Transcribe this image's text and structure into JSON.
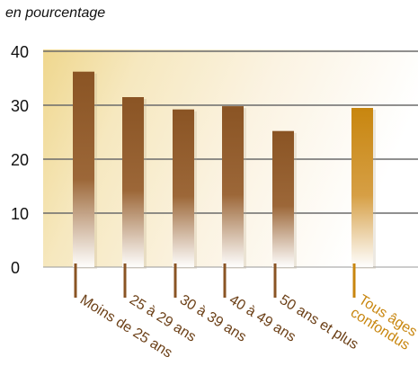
{
  "unit_label": "en pourcentage",
  "colors": {
    "bar": "#8a5424",
    "bar_highlight": "#c8860f",
    "category_text": "#6b3f16",
    "category_text_highlight": "#c8860f",
    "grid": "#6b6b6b",
    "axis": "#9a9a9a",
    "background_warm": "#f1de9e"
  },
  "chart_data": {
    "type": "bar",
    "ylim": [
      0,
      40
    ],
    "yticks": [
      0,
      10,
      20,
      30,
      40
    ],
    "grid": true,
    "categories": [
      "Moins de 25 ans",
      "25 à 29 ans",
      "30 à 39 ans",
      "40 à 49 ans",
      "50 ans et plus",
      "Tous âges confondus"
    ],
    "category_lines": [
      [
        "Moins de 25 ans"
      ],
      [
        "25 à 29 ans"
      ],
      [
        "30 à 39 ans"
      ],
      [
        "40 à 49 ans"
      ],
      [
        "50 ans et plus"
      ],
      [
        "Tous âges",
        "confondus"
      ]
    ],
    "values": [
      36.2,
      31.5,
      29.2,
      29.8,
      25.2,
      29.5
    ],
    "highlight_index": 5
  }
}
